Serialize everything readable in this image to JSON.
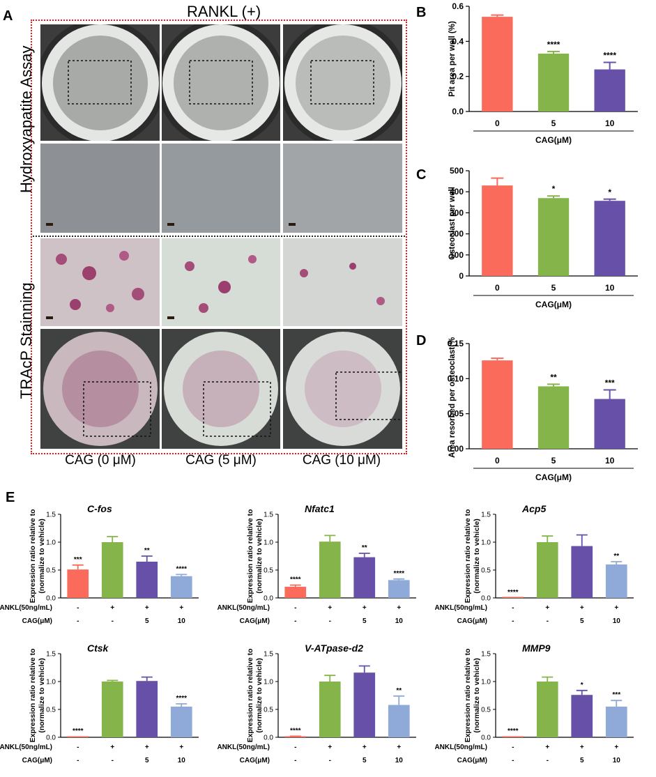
{
  "panel_a": {
    "letter": "A",
    "header": "RANKL (+)",
    "row_labels": [
      "Hydroxyapatite  Assay",
      "TRAcP Stainning"
    ],
    "conditions": [
      "CAG (0 μM)",
      "CAG (5 μM)",
      "CAG (10 μM)"
    ]
  },
  "panel_e_letter": "E",
  "colors": {
    "c0": "#fa6b5c",
    "c5": "#85b54a",
    "c10": "#6750a8",
    "c_light": "#8fa9d8",
    "red_box": "#e01b1b"
  },
  "chart_data": [
    {
      "id": "B",
      "letter": "B",
      "type": "bar",
      "categories": [
        "0",
        "5",
        "10"
      ],
      "values": [
        0.54,
        0.33,
        0.24
      ],
      "errors": [
        0.01,
        0.012,
        0.04
      ],
      "significance": [
        "",
        "****",
        "****"
      ],
      "colors": [
        "#fa6b5c",
        "#85b54a",
        "#6750a8"
      ],
      "ylabel": "Pit area  per well (%)",
      "xlabel": "CAG(μM)",
      "ylim": [
        0,
        0.6
      ],
      "yticks": [
        "0.0",
        "0.2",
        "0.4",
        "0.6"
      ]
    },
    {
      "id": "C",
      "letter": "C",
      "type": "bar",
      "categories": [
        "0",
        "5",
        "10"
      ],
      "values": [
        430,
        370,
        357
      ],
      "errors": [
        35,
        10,
        8
      ],
      "significance": [
        "",
        "*",
        "*"
      ],
      "colors": [
        "#fa6b5c",
        "#85b54a",
        "#6750a8"
      ],
      "ylabel": "Osteoclast per well",
      "xlabel": "CAG(μM)",
      "ylim": [
        0,
        500
      ],
      "yticks": [
        "0",
        "100",
        "200",
        "300",
        "400",
        "500"
      ]
    },
    {
      "id": "D",
      "letter": "D",
      "type": "bar",
      "categories": [
        "0",
        "5",
        "10"
      ],
      "values": [
        0.126,
        0.089,
        0.071
      ],
      "errors": [
        0.003,
        0.003,
        0.013
      ],
      "significance": [
        "",
        "**",
        "***"
      ],
      "colors": [
        "#fa6b5c",
        "#85b54a",
        "#6750a8"
      ],
      "ylabel": "Area resorbed per osteoclast(%)",
      "xlabel": "CAG(μM)",
      "ylim": [
        0,
        0.15
      ],
      "yticks": [
        "0.00",
        "0.05",
        "0.10",
        "0.15"
      ]
    },
    {
      "id": "E1",
      "type": "bar",
      "title": "C-fos",
      "values": [
        0.51,
        1.0,
        0.65,
        0.39
      ],
      "errors": [
        0.08,
        0.1,
        0.1,
        0.03
      ],
      "significance": [
        "***",
        "",
        "**",
        "****"
      ],
      "colors": [
        "#fa6b5c",
        "#85b54a",
        "#6750a8",
        "#8fa9d8"
      ],
      "ylabel": [
        "Expression ratio relative to",
        "(normalize to vehicle)"
      ],
      "ylim": [
        0,
        1.5
      ],
      "yticks": [
        "0.0",
        "0.5",
        "1.0",
        "1.5"
      ],
      "row_labels": [
        "RANKL(50ng/mL)",
        "CAG(μM)"
      ],
      "rankl": [
        "-",
        "+",
        "+",
        "+"
      ],
      "cag": [
        "-",
        "-",
        "5",
        "10"
      ]
    },
    {
      "id": "E2",
      "type": "bar",
      "title": "Nfatc1",
      "values": [
        0.2,
        1.01,
        0.73,
        0.32
      ],
      "errors": [
        0.03,
        0.11,
        0.07,
        0.02
      ],
      "significance": [
        "****",
        "",
        "**",
        "****"
      ],
      "colors": [
        "#fa6b5c",
        "#85b54a",
        "#6750a8",
        "#8fa9d8"
      ],
      "ylabel": [
        "Expression ratio relative to",
        "(normalize to vehicle)"
      ],
      "ylim": [
        0,
        1.5
      ],
      "yticks": [
        "0.0",
        "0.5",
        "1.0",
        "1.5"
      ],
      "row_labels": [
        "RANKL(50ng/mL)",
        "CAG(μM)"
      ],
      "rankl": [
        "-",
        "+",
        "+",
        "+"
      ],
      "cag": [
        "-",
        "-",
        "5",
        "10"
      ]
    },
    {
      "id": "E3",
      "type": "bar",
      "title": "Acp5",
      "values": [
        0.0,
        1.0,
        0.93,
        0.6
      ],
      "errors": [
        0.0,
        0.11,
        0.2,
        0.05
      ],
      "significance": [
        "****",
        "",
        "",
        "**"
      ],
      "colors": [
        "#fa6b5c",
        "#85b54a",
        "#6750a8",
        "#8fa9d8"
      ],
      "ylabel": [
        "Expression ratio relative to",
        "(normalize to vehicle)"
      ],
      "ylim": [
        0,
        1.5
      ],
      "yticks": [
        "0.0",
        "0.5",
        "1.0",
        "1.5"
      ],
      "row_labels": [
        "RANKL(50ng/mL)",
        "CAG(μM)"
      ],
      "rankl": [
        "-",
        "+",
        "+",
        "+"
      ],
      "cag": [
        "-",
        "-",
        "5",
        "10"
      ]
    },
    {
      "id": "E4",
      "type": "bar",
      "title": "Ctsk",
      "values": [
        0.01,
        1.0,
        1.01,
        0.55
      ],
      "errors": [
        0.0,
        0.02,
        0.07,
        0.05
      ],
      "significance": [
        "****",
        "",
        "",
        "****"
      ],
      "colors": [
        "#fa6b5c",
        "#85b54a",
        "#6750a8",
        "#8fa9d8"
      ],
      "ylabel": [
        "Expression ratio relative to",
        "(normalize to vehicle)"
      ],
      "ylim": [
        0,
        1.5
      ],
      "yticks": [
        "0.0",
        "0.5",
        "1.0",
        "1.5"
      ],
      "row_labels": [
        "RANKL(50ng/mL)",
        "CAG(μM)"
      ],
      "rankl": [
        "-",
        "+",
        "+",
        "+"
      ],
      "cag": [
        "-",
        "-",
        "5",
        "10"
      ]
    },
    {
      "id": "E5",
      "type": "bar",
      "title": "V-ATpase-d2",
      "values": [
        0.01,
        1.0,
        1.16,
        0.58
      ],
      "errors": [
        0.01,
        0.11,
        0.12,
        0.16
      ],
      "significance": [
        "****",
        "",
        "",
        "**"
      ],
      "colors": [
        "#fa6b5c",
        "#85b54a",
        "#6750a8",
        "#8fa9d8"
      ],
      "ylabel": [
        "Expression ratio relative to",
        "(normalize to vehicle)"
      ],
      "ylim": [
        0,
        1.5
      ],
      "yticks": [
        "0.0",
        "0.5",
        "1.0",
        "1.5"
      ],
      "row_labels": [
        "RANKL(50ng/mL)",
        "CAG(μM)"
      ],
      "rankl": [
        "-",
        "+",
        "+",
        "+"
      ],
      "cag": [
        "-",
        "-",
        "5",
        "10"
      ]
    },
    {
      "id": "E6",
      "type": "bar",
      "title": "MMP9",
      "values": [
        0.01,
        1.0,
        0.76,
        0.55
      ],
      "errors": [
        0.0,
        0.08,
        0.08,
        0.11
      ],
      "significance": [
        "****",
        "",
        "*",
        "***"
      ],
      "colors": [
        "#fa6b5c",
        "#85b54a",
        "#6750a8",
        "#8fa9d8"
      ],
      "ylabel": [
        "Expression ratio relative to",
        "(normalize to vehicle)"
      ],
      "ylim": [
        0,
        1.5
      ],
      "yticks": [
        "0.0",
        "0.5",
        "1.0",
        "1.5"
      ],
      "row_labels": [
        "RANKL(50ng/mL)",
        "CAG(μM)"
      ],
      "rankl": [
        "-",
        "+",
        "+",
        "+"
      ],
      "cag": [
        "-",
        "-",
        "5",
        "10"
      ]
    }
  ]
}
